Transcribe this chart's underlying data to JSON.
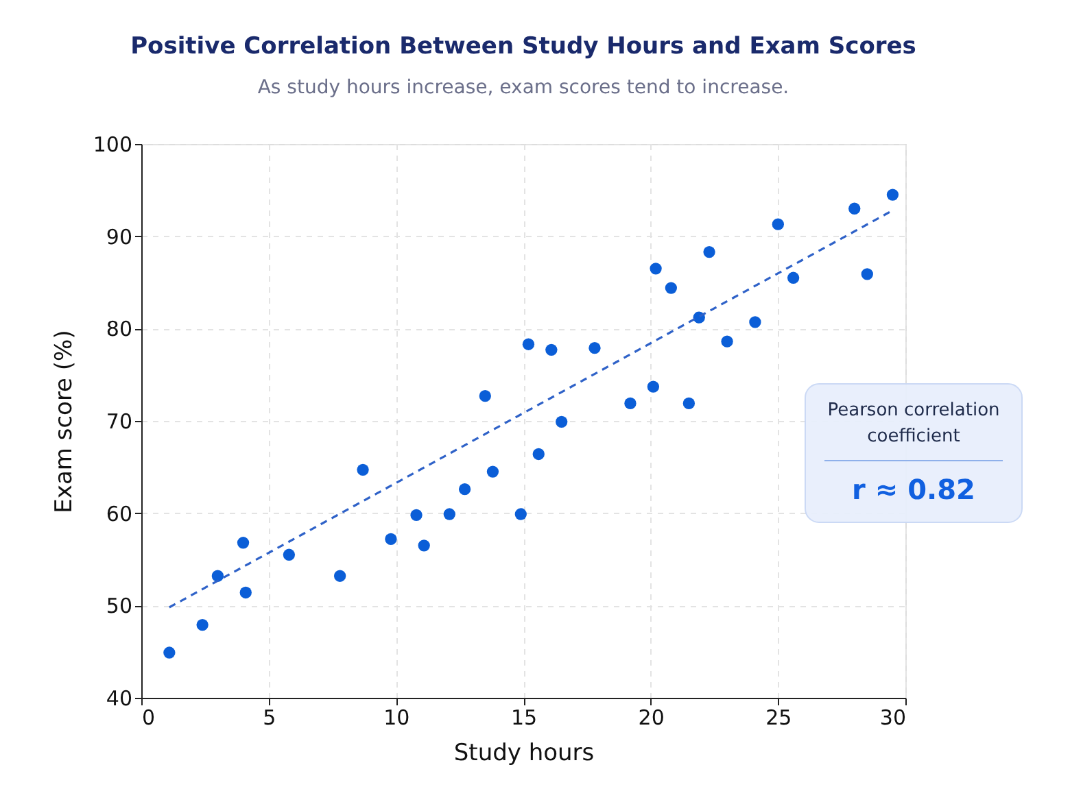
{
  "chart_data": {
    "type": "scatter",
    "title": "Positive Correlation Between Study Hours and Exam Scores",
    "subtitle": "As study hours increase, exam scores tend to increase.",
    "xlabel": "Study hours",
    "ylabel": "Exam score (%)",
    "xlim": [
      0,
      30
    ],
    "xticks": [
      0,
      5,
      10,
      15,
      20,
      25,
      30
    ],
    "ylim": [
      40,
      100
    ],
    "yticks": [
      40,
      50,
      60,
      70,
      80,
      90,
      100
    ],
    "grid": true,
    "marker": "circle",
    "series": [
      {
        "color": "#0b5ed7",
        "x": [
          1.1,
          2.4,
          3.0,
          4.0,
          4.1,
          5.8,
          7.8,
          8.7,
          9.8,
          10.8,
          11.1,
          12.1,
          12.7,
          13.5,
          13.8,
          14.9,
          15.2,
          15.6,
          16.1,
          16.5,
          17.8,
          19.2,
          20.1,
          20.2,
          20.8,
          21.5,
          21.9,
          22.3,
          23.0,
          24.1,
          25.0,
          25.6,
          28.0,
          28.5,
          29.5
        ],
        "values": [
          44.9,
          47.9,
          53.2,
          56.8,
          51.4,
          55.5,
          53.2,
          64.7,
          57.2,
          59.8,
          56.5,
          59.9,
          62.6,
          72.7,
          64.5,
          59.9,
          78.3,
          66.4,
          77.7,
          69.9,
          77.9,
          71.9,
          73.7,
          86.5,
          84.4,
          71.9,
          81.2,
          88.3,
          78.6,
          80.7,
          91.3,
          85.5,
          93.0,
          85.9,
          94.5
        ]
      },
      {
        "type": "line",
        "color": "#2f62c8",
        "line_style": "dashed",
        "marker": "none",
        "x": [
          1.1,
          29.5
        ],
        "values": [
          49.8,
          92.8
        ]
      }
    ],
    "annotations": [
      "Pearson correlation coefficient",
      "r ≈ 0.82"
    ]
  }
}
